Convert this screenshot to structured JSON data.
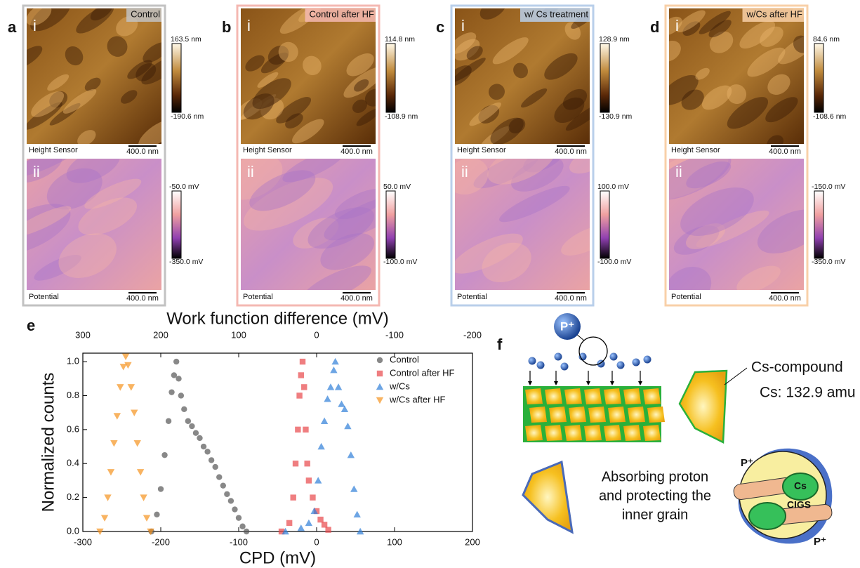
{
  "panels": [
    {
      "letter": "a",
      "title": "Control",
      "top_label": "i",
      "bottom_label": "ii",
      "height_label": "Height Sensor",
      "height_scale": "400.0 nm",
      "height_max": "163.5 nm",
      "height_min": "-190.6 nm",
      "potential_label": "Potential",
      "potential_scale": "400.0 nm",
      "potential_max": "-50.0 mV",
      "potential_min": "-350.0 mV"
    },
    {
      "letter": "b",
      "title": "Control after HF",
      "top_label": "i",
      "bottom_label": "ii",
      "height_label": "Height Sensor",
      "height_scale": "400.0 nm",
      "height_max": "114.8 nm",
      "height_min": "-108.9 nm",
      "potential_label": "Potential",
      "potential_scale": "400.0 nm",
      "potential_max": "50.0 mV",
      "potential_min": "-100.0 mV"
    },
    {
      "letter": "c",
      "title": "w/ Cs treatment",
      "top_label": "i",
      "bottom_label": "ii",
      "height_label": "Height Sensor",
      "height_scale": "400.0 nm",
      "height_max": "128.9 nm",
      "height_min": "-130.9 nm",
      "potential_label": "Potential",
      "potential_scale": "400.0 nm",
      "potential_max": "100.0 mV",
      "potential_min": "-100.0 mV"
    },
    {
      "letter": "d",
      "title": "w/Cs after HF",
      "top_label": "i",
      "bottom_label": "ii",
      "height_label": "Height Sensor",
      "height_scale": "400.0 nm",
      "height_max": "84.6 nm",
      "height_min": "-108.6 nm",
      "potential_label": "Potential",
      "potential_scale": "400.0 nm",
      "potential_max": "-150.0 mV",
      "potential_min": "-350.0 mV"
    }
  ],
  "chart_data": {
    "type": "scatter",
    "panel_label": "e",
    "xlabel": "CPD (mV)",
    "ylabel": "Normalized counts",
    "x2label": "Work function difference (mV)",
    "xlim": [
      -300,
      200
    ],
    "xticks": [
      -300,
      -200,
      -100,
      0,
      100,
      200
    ],
    "x2lim": [
      300,
      -200
    ],
    "x2ticks": [
      300,
      200,
      100,
      0,
      -100,
      -200
    ],
    "ylim": [
      0,
      1.05
    ],
    "yticks": [
      {
        "value": 0,
        "label": "0.0"
      },
      0.2,
      0.4,
      0.6,
      0.8,
      {
        "value": 1,
        "label": "1.0"
      }
    ],
    "legend": "top right",
    "series": [
      {
        "name": "Control",
        "color": "#555555",
        "marker": "circle",
        "x": [
          -212,
          -205,
          -200,
          -195,
          -190,
          -186,
          -183,
          -180,
          -177,
          -174,
          -170,
          -165,
          -160,
          -155,
          -150,
          -145,
          -140,
          -135,
          -130,
          -125,
          -120,
          -115,
          -110,
          -105,
          -100,
          -95,
          -90
        ],
        "values": [
          0,
          0.1,
          0.25,
          0.45,
          0.65,
          0.82,
          0.92,
          1.0,
          0.9,
          0.8,
          0.72,
          0.65,
          0.62,
          0.58,
          0.55,
          0.5,
          0.47,
          0.42,
          0.38,
          0.32,
          0.27,
          0.22,
          0.18,
          0.13,
          0.08,
          0.03,
          0
        ]
      },
      {
        "name": "Control after HF",
        "color": "#e8474a",
        "marker": "square",
        "x": [
          -45,
          -35,
          -30,
          -27,
          -24,
          -22,
          -20,
          -18,
          -16,
          -14,
          -12,
          -10,
          -5,
          0,
          5,
          10,
          15
        ],
        "values": [
          0,
          0.05,
          0.2,
          0.4,
          0.6,
          0.8,
          0.92,
          1.0,
          0.85,
          0.6,
          0.4,
          0.3,
          0.2,
          0.12,
          0.07,
          0.04,
          0.01
        ]
      },
      {
        "name": "w/Cs",
        "color": "#2f7fd9",
        "marker": "triangle-up",
        "x": [
          -40,
          -20,
          -10,
          -3,
          2,
          6,
          10,
          14,
          18,
          22,
          24,
          28,
          32,
          36,
          40,
          44,
          48,
          52,
          56
        ],
        "values": [
          0,
          0.02,
          0.05,
          0.12,
          0.3,
          0.5,
          0.65,
          0.78,
          0.85,
          0.95,
          1.0,
          0.85,
          0.75,
          0.72,
          0.62,
          0.45,
          0.25,
          0.1,
          0
        ]
      },
      {
        "name": "w/Cs after HF",
        "color": "#f5931e",
        "marker": "triangle-down",
        "x": [
          -278,
          -272,
          -268,
          -264,
          -260,
          -256,
          -252,
          -248,
          -245,
          -242,
          -238,
          -234,
          -230,
          -226,
          -222,
          -218,
          -213
        ],
        "values": [
          0,
          0.08,
          0.2,
          0.35,
          0.52,
          0.68,
          0.85,
          0.97,
          1.03,
          0.98,
          0.85,
          0.7,
          0.52,
          0.35,
          0.2,
          0.08,
          0
        ]
      }
    ]
  },
  "diagram": {
    "panel_label": "f",
    "proton": "P⁺",
    "compound_label": "Cs-compound",
    "mass_label": "Cs: 132.9 amu",
    "caption": [
      "Absorbing proton",
      "and protecting the",
      "inner grain"
    ],
    "badge_top": "P⁺",
    "badge_bottom": "P⁺",
    "badge_cs": "Cs",
    "badge_cigs": "CIGS"
  }
}
